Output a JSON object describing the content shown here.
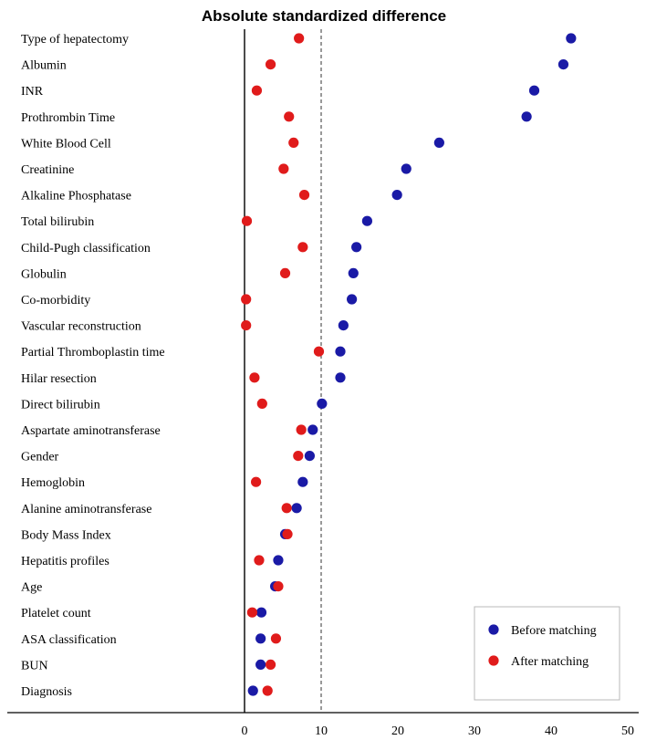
{
  "chart_data": {
    "type": "scatter",
    "title": "Absolute standardized difference",
    "xlabel": "",
    "ylabel": "",
    "xlim": [
      0,
      50
    ],
    "x_ticks": [
      0,
      10,
      20,
      30,
      40,
      50
    ],
    "reference_line_x": 10,
    "grid": false,
    "legend_position": "bottom-right",
    "categories": [
      "Type of hepatectomy",
      "Albumin",
      "INR",
      "Prothrombin Time",
      "White Blood Cell",
      "Creatinine",
      "Alkaline Phosphatase",
      "Total bilirubin",
      "Child-Pugh classification",
      "Globulin",
      "Co-morbidity",
      "Vascular reconstruction",
      "Partial Thromboplastin time",
      "Hilar resection",
      "Direct bilirubin",
      "Aspartate aminotransferase",
      "Gender",
      "Hemoglobin",
      "Alanine aminotransferase",
      "Body Mass Index",
      "Hepatitis profiles",
      "Age",
      "Platelet count",
      "ASA classification",
      "BUN",
      "Diagnosis"
    ],
    "series": [
      {
        "name": "Before matching",
        "color": "#1a1aa6",
        "values": [
          42.6,
          41.6,
          37.8,
          36.8,
          25.4,
          21.1,
          19.9,
          16.0,
          14.6,
          14.2,
          14.0,
          12.9,
          12.5,
          12.5,
          10.1,
          8.9,
          8.5,
          7.6,
          6.8,
          5.3,
          4.4,
          4.0,
          2.2,
          2.1,
          2.1,
          1.1
        ]
      },
      {
        "name": "After matching",
        "color": "#e01b1b",
        "values": [
          7.1,
          3.4,
          1.6,
          5.8,
          6.4,
          5.1,
          7.8,
          0.3,
          7.6,
          5.3,
          0.2,
          0.2,
          9.7,
          1.3,
          2.3,
          7.4,
          7.0,
          1.5,
          5.5,
          5.6,
          1.9,
          4.4,
          1.0,
          4.1,
          3.4,
          3.0
        ]
      }
    ]
  }
}
